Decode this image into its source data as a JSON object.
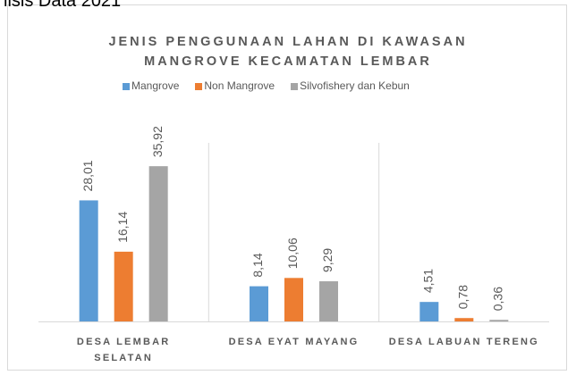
{
  "caption": "lisis Data 2021",
  "chart_data": {
    "type": "bar",
    "title": "JENIS PENGGUNAAN LAHAN DI KAWASAN MANGROVE KECAMATAN LEMBAR",
    "categories": [
      "DESA LEMBAR SELATAN",
      "DESA EYAT MAYANG",
      "DESA LABUAN TERENG"
    ],
    "series": [
      {
        "name": "Mangrove",
        "color": "#5b9bd5",
        "values": [
          28.01,
          8.14,
          4.51
        ],
        "value_labels": [
          "28,01",
          "8,14",
          "4,51"
        ]
      },
      {
        "name": "Non Mangrove",
        "color": "#ed7d31",
        "values": [
          16.14,
          10.06,
          0.78
        ],
        "value_labels": [
          "16,14",
          "10,06",
          "0,78"
        ]
      },
      {
        "name": "Silvofishery dan Kebun",
        "color": "#a5a5a5",
        "values": [
          35.92,
          9.29,
          0.36
        ],
        "value_labels": [
          "35,92",
          "9,29",
          "0,36"
        ]
      }
    ],
    "legend": "top"
  }
}
